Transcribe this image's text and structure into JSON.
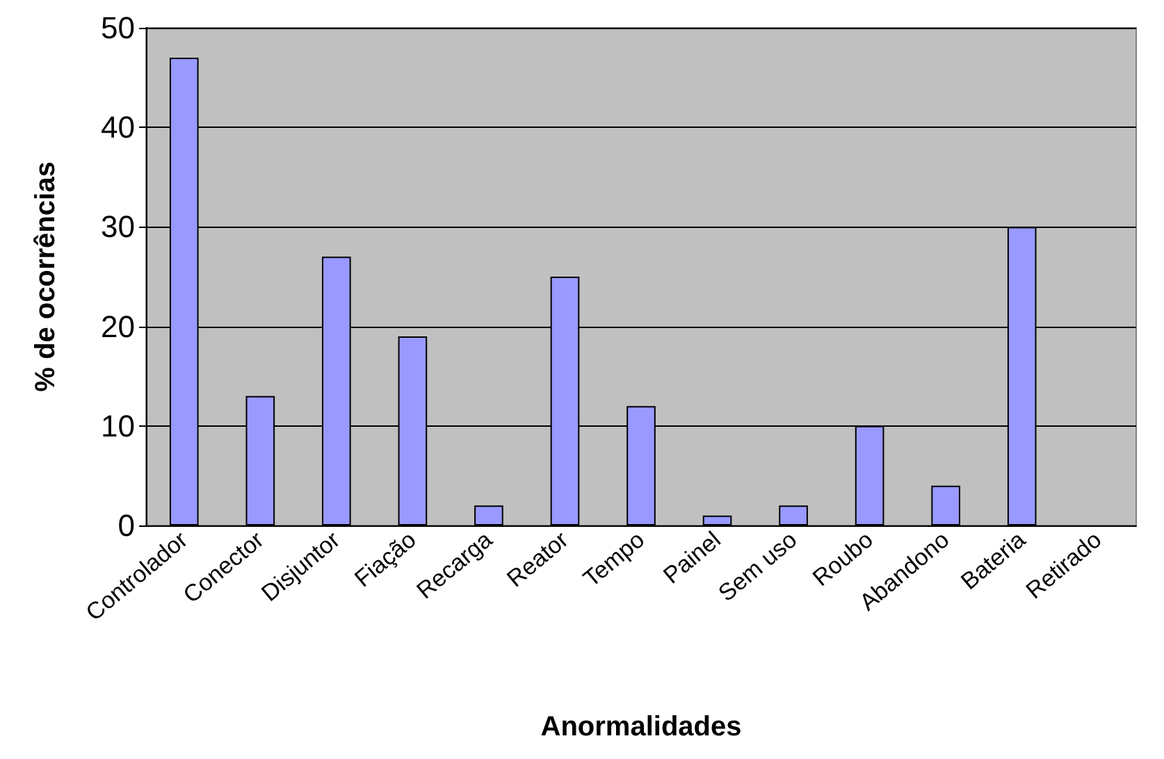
{
  "chart_data": {
    "type": "bar",
    "xlabel": "Anormalidades",
    "ylabel": "% de ocorrências",
    "categories": [
      "Controlador",
      "Conector",
      "Disjuntor",
      "Fiação",
      "Recarga",
      "Reator",
      "Tempo",
      "Painel",
      "Sem uso",
      "Roubo",
      "Abandono",
      "Bateria",
      "Retirado"
    ],
    "values": [
      47,
      13,
      27,
      19,
      2,
      25,
      12,
      1,
      2,
      10,
      4,
      30,
      0
    ],
    "color": "#9999ff",
    "ylim": [
      0,
      50
    ],
    "yticks": [
      0,
      10,
      20,
      30,
      40,
      50
    ],
    "grid": "y"
  }
}
